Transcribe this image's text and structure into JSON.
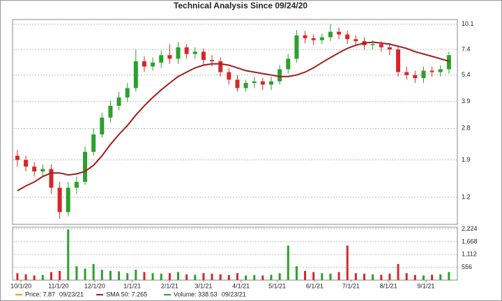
{
  "chart_data": [
    {
      "type": "candlestick",
      "title": "Technical Analysis Since 09/24/20",
      "x": [
        "9/28/20",
        "10/5/20",
        "10/12/20",
        "10/19/20",
        "10/26/20",
        "11/2/20",
        "11/9/20",
        "11/16/20",
        "11/23/20",
        "11/30/20",
        "12/7/20",
        "12/14/20",
        "12/21/20",
        "12/28/20",
        "1/4/21",
        "1/11/21",
        "1/18/21",
        "1/25/21",
        "2/1/21",
        "2/8/21",
        "2/15/21",
        "2/22/21",
        "3/1/21",
        "3/8/21",
        "3/15/21",
        "3/22/21",
        "3/29/21",
        "4/5/21",
        "4/12/21",
        "4/19/21",
        "4/26/21",
        "5/3/21",
        "5/10/21",
        "5/17/21",
        "5/24/21",
        "5/31/21",
        "6/7/21",
        "6/14/21",
        "6/21/21",
        "6/28/21",
        "7/5/21",
        "7/12/21",
        "7/19/21",
        "7/26/21",
        "8/2/21",
        "8/9/21",
        "8/16/21",
        "8/23/21",
        "8/30/21",
        "9/6/21",
        "9/13/21",
        "9/20/21"
      ],
      "open": [
        2.0,
        1.9,
        1.75,
        1.65,
        1.7,
        1.35,
        1.0,
        1.35,
        1.45,
        2.1,
        2.6,
        3.2,
        3.7,
        4.1,
        4.6,
        6.4,
        6.0,
        6.3,
        6.9,
        6.6,
        7.6,
        7.0,
        7.2,
        6.5,
        6.4,
        5.6,
        5.1,
        4.6,
        4.9,
        5.0,
        4.8,
        5.0,
        5.8,
        6.6,
        8.8,
        8.5,
        8.3,
        8.6,
        9.2,
        8.9,
        8.4,
        8.2,
        7.8,
        7.9,
        7.6,
        7.4,
        5.6,
        5.4,
        5.2,
        5.7,
        5.6,
        5.8
      ],
      "high": [
        2.15,
        2.0,
        1.85,
        1.8,
        1.8,
        1.45,
        1.45,
        1.55,
        2.25,
        2.8,
        3.4,
        3.95,
        4.4,
        4.9,
        7.4,
        6.8,
        6.7,
        7.3,
        7.9,
        8.1,
        7.9,
        7.6,
        7.5,
        6.9,
        6.7,
        5.9,
        5.4,
        5.1,
        5.3,
        5.2,
        5.3,
        6.1,
        7.0,
        9.4,
        9.3,
        8.9,
        9.0,
        10.1,
        9.7,
        9.3,
        8.8,
        8.6,
        8.3,
        8.2,
        8.0,
        7.7,
        6.0,
        5.7,
        6.0,
        6.0,
        6.1,
        7.2
      ],
      "low": [
        1.75,
        1.65,
        1.55,
        1.55,
        1.25,
        0.92,
        0.95,
        1.25,
        1.4,
        2.0,
        2.5,
        3.0,
        3.5,
        3.9,
        4.4,
        5.6,
        5.7,
        5.9,
        6.2,
        6.2,
        6.6,
        6.6,
        6.1,
        6.0,
        5.3,
        4.8,
        4.4,
        4.4,
        4.6,
        4.5,
        4.5,
        4.8,
        5.5,
        6.3,
        8.0,
        7.8,
        7.9,
        8.2,
        8.4,
        7.9,
        7.7,
        7.4,
        7.4,
        7.2,
        6.9,
        5.3,
        5.1,
        4.9,
        4.9,
        5.3,
        5.3,
        5.5
      ],
      "close": [
        1.9,
        1.75,
        1.65,
        1.7,
        1.35,
        1.0,
        1.35,
        1.45,
        2.1,
        2.6,
        3.2,
        3.7,
        4.1,
        4.6,
        6.4,
        6.0,
        6.3,
        6.9,
        6.6,
        7.6,
        7.0,
        7.2,
        6.5,
        6.4,
        5.6,
        5.1,
        4.6,
        4.9,
        5.0,
        4.8,
        5.0,
        5.8,
        6.6,
        8.8,
        8.5,
        8.3,
        8.6,
        9.2,
        8.9,
        8.4,
        8.2,
        7.8,
        7.9,
        7.6,
        7.4,
        5.6,
        5.4,
        5.2,
        5.7,
        5.6,
        5.8,
        6.9
      ],
      "up_color": "#2ca02c",
      "down_color": "#d62728",
      "sma": {
        "color": "#a01e1e",
        "values": [
          1.3,
          1.38,
          1.45,
          1.55,
          1.62,
          1.62,
          1.58,
          1.6,
          1.65,
          1.78,
          2.0,
          2.3,
          2.6,
          2.9,
          3.3,
          3.7,
          4.1,
          4.5,
          4.9,
          5.3,
          5.6,
          5.9,
          6.1,
          6.2,
          6.2,
          6.1,
          5.9,
          5.7,
          5.6,
          5.5,
          5.4,
          5.3,
          5.3,
          5.4,
          5.6,
          5.9,
          6.3,
          6.7,
          7.1,
          7.5,
          7.8,
          8.0,
          8.1,
          8.0,
          7.9,
          7.7,
          7.5,
          7.2,
          7.0,
          6.8,
          6.6,
          6.4
        ]
      },
      "log_scale": true,
      "ylim": [
        0.86,
        10.7
      ],
      "yticks": [
        1.2,
        1.9,
        2.8,
        3.9,
        5.4,
        7.4,
        10.1
      ],
      "grid": true,
      "xlim": [
        "9/24/20",
        "9/27/21"
      ],
      "xticks": [
        "10/1/20",
        "11/1/20",
        "12/1/20",
        "1/1/21",
        "2/1/21",
        "3/1/21",
        "4/1/21",
        "5/1/21",
        "6/1/21",
        "7/1/21",
        "8/1/21",
        "9/1/21"
      ],
      "legend": [
        {
          "text": "Price: 7.87",
          "date": "09/23/21",
          "color": "#f39c12"
        },
        {
          "text": "SMA 50: 7.265",
          "color": "#a01e1e"
        },
        {
          "text": "Volume: 338.53",
          "date": "09/23/21",
          "color": "#2ca02c"
        }
      ]
    },
    {
      "type": "bar",
      "x": [
        "9/28/20",
        "10/5/20",
        "10/12/20",
        "10/19/20",
        "10/26/20",
        "11/2/20",
        "11/9/20",
        "11/16/20",
        "11/23/20",
        "11/30/20",
        "12/7/20",
        "12/14/20",
        "12/21/20",
        "12/28/20",
        "1/4/21",
        "1/11/21",
        "1/18/21",
        "1/25/21",
        "2/1/21",
        "2/8/21",
        "2/15/21",
        "2/22/21",
        "3/1/21",
        "3/8/21",
        "3/15/21",
        "3/22/21",
        "3/29/21",
        "4/5/21",
        "4/12/21",
        "4/19/21",
        "4/26/21",
        "5/3/21",
        "5/10/21",
        "5/17/21",
        "5/24/21",
        "5/31/21",
        "6/7/21",
        "6/14/21",
        "6/21/21",
        "6/28/21",
        "7/5/21",
        "7/12/21",
        "7/19/21",
        "7/26/21",
        "8/2/21",
        "8/9/21",
        "8/16/21",
        "8/23/21",
        "8/30/21",
        "9/6/21",
        "9/13/21",
        "9/20/21"
      ],
      "values": [
        300,
        250,
        200,
        220,
        350,
        400,
        2200,
        600,
        500,
        700,
        450,
        400,
        380,
        300,
        450,
        350,
        300,
        280,
        300,
        350,
        250,
        230,
        300,
        280,
        250,
        220,
        300,
        200,
        220,
        200,
        230,
        300,
        1500,
        600,
        400,
        350,
        300,
        280,
        350,
        1500,
        300,
        280,
        250,
        230,
        280,
        700,
        300,
        220,
        200,
        230,
        250,
        350
      ],
      "ylim": [
        0,
        2300
      ],
      "yticks": [
        {
          "value": 556,
          "label": "556"
        },
        {
          "value": 1112,
          "label": "1,112"
        },
        {
          "value": 1668,
          "label": "1,668"
        },
        {
          "value": 2224,
          "label": "2,224"
        }
      ],
      "grid": true
    }
  ]
}
